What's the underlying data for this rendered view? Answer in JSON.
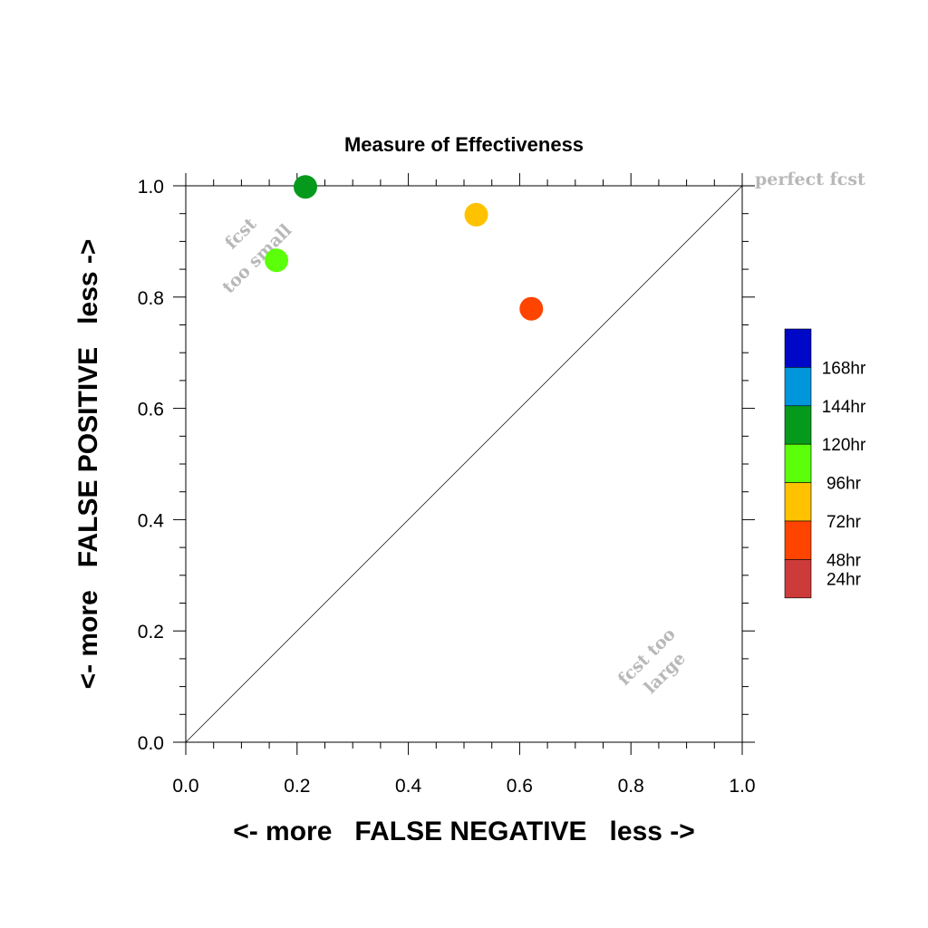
{
  "chart_data": {
    "type": "scatter",
    "title": "Measure of Effectiveness",
    "xlabel": "<- more   FALSE NEGATIVE   less ->",
    "ylabel": "<- more   FALSE POSITIVE   less ->",
    "xlim": [
      0.0,
      1.0
    ],
    "ylim": [
      0.0,
      1.0
    ],
    "xticks": [
      "0.0",
      "0.2",
      "0.4",
      "0.6",
      "0.8",
      "1.0"
    ],
    "yticks": [
      "0.0",
      "0.2",
      "0.4",
      "0.6",
      "0.8",
      "1.0"
    ],
    "grid": false,
    "legend_position": "right",
    "legend": [
      {
        "label": "168hr",
        "color": "#0008c8"
      },
      {
        "label": "144hr",
        "color": "#0096dc"
      },
      {
        "label": "120hr",
        "color": "#069a1c"
      },
      {
        "label": "96hr",
        "color": "#5cff0a"
      },
      {
        "label": "72hr",
        "color": "#ffc200"
      },
      {
        "label": "48hr",
        "color": "#ff4400"
      },
      {
        "label": "24hr",
        "color": "#cc3a3a"
      }
    ],
    "points": [
      {
        "series": "120hr",
        "x": 0.215,
        "y": 0.998,
        "color": "#069a1c"
      },
      {
        "series": "96hr",
        "x": 0.163,
        "y": 0.866,
        "color": "#5cff0a"
      },
      {
        "series": "72hr",
        "x": 0.522,
        "y": 0.948,
        "color": "#ffc200"
      },
      {
        "series": "48hr",
        "x": 0.621,
        "y": 0.779,
        "color": "#ff4400"
      }
    ],
    "reference_line": "diagonal",
    "annotations": {
      "perfect": "perfect fcst",
      "too_small_1": "fcst",
      "too_small_2": "too small",
      "too_large_1": "fcst too",
      "too_large_2": "large"
    }
  }
}
